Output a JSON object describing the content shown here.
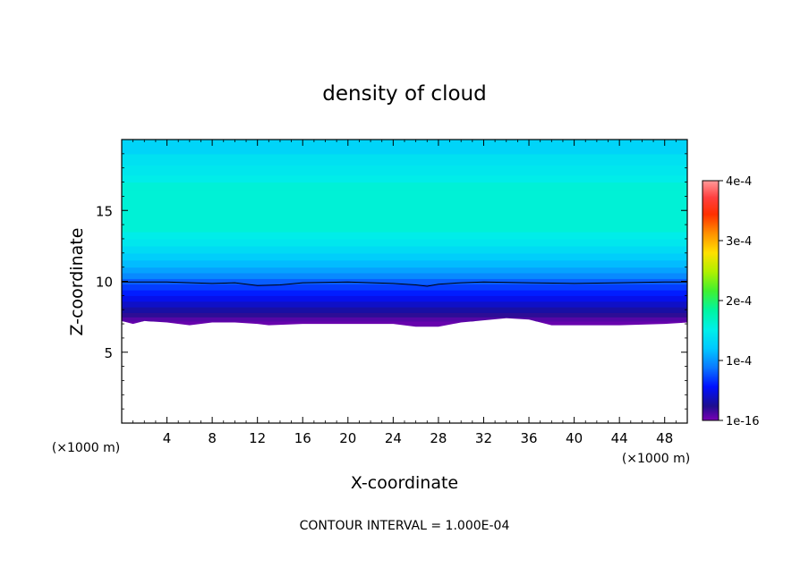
{
  "chart_data": {
    "type": "heatmap",
    "title": "density of cloud",
    "xlabel": "X-coordinate",
    "ylabel": "Z-coordinate",
    "x_unit_note_left": "(×1000 m)",
    "x_unit_note_right": "(×1000 m)",
    "xlim": [
      0,
      50
    ],
    "ylim": [
      0,
      20
    ],
    "x_ticks": [
      4,
      8,
      12,
      16,
      20,
      24,
      28,
      32,
      36,
      40,
      44,
      48
    ],
    "y_ticks": [
      5,
      10,
      15
    ],
    "footer": "CONTOUR INTERVAL = 1.000E-04",
    "colorbar": {
      "min": 0,
      "max": 0.0004,
      "tick_values": [
        0,
        0.0001,
        0.0002,
        0.0003,
        0.0004
      ],
      "tick_labels": [
        "1e-16",
        "1e-4",
        "2e-4",
        "3e-4",
        "4e-4"
      ]
    },
    "contour_level": 0.0001,
    "profile": {
      "z": [
        6.8,
        7.2,
        7.5,
        7.8,
        8.2,
        8.6,
        9.0,
        9.4,
        9.8,
        10.2,
        10.6,
        11.0,
        11.5,
        12.0,
        12.5,
        13.0,
        13.5,
        16.5,
        17.0,
        17.5,
        18.2,
        19.0,
        20.0
      ],
      "value": [
        5e-06,
        1e-05,
        2e-05,
        3e-05,
        4e-05,
        5e-05,
        6e-05,
        7e-05,
        8e-05,
        9.5e-05,
        0.000105,
        0.000115,
        0.000125,
        0.000135,
        0.000145,
        0.00015,
        0.00016,
        0.00016,
        0.00015,
        0.000145,
        0.00014,
        0.00013,
        0.00013
      ]
    },
    "cloud_base": {
      "x": [
        0,
        1,
        2,
        4,
        6,
        8,
        10,
        12,
        13,
        16,
        20,
        24,
        26,
        28,
        30,
        34,
        36,
        38,
        40,
        44,
        48,
        50
      ],
      "z": [
        7.2,
        7.0,
        7.2,
        7.1,
        6.9,
        7.1,
        7.1,
        7.0,
        6.9,
        7.0,
        7.0,
        7.0,
        6.8,
        6.8,
        7.1,
        7.4,
        7.3,
        6.9,
        6.9,
        6.9,
        7.0,
        7.1
      ]
    },
    "contour_1e4": {
      "x": [
        0,
        4,
        8,
        10,
        12,
        14,
        16,
        20,
        24,
        26,
        27,
        28,
        30,
        32,
        36,
        40,
        44,
        48,
        50
      ],
      "z": [
        9.95,
        9.95,
        9.85,
        9.9,
        9.7,
        9.75,
        9.9,
        9.95,
        9.85,
        9.75,
        9.65,
        9.8,
        9.9,
        9.95,
        9.9,
        9.85,
        9.9,
        9.95,
        9.95
      ]
    }
  }
}
